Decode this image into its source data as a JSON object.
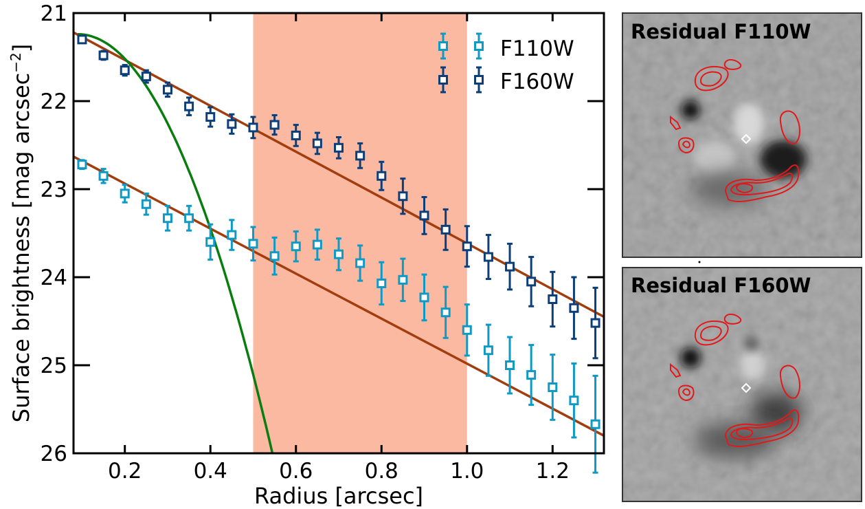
{
  "chart_data": {
    "type": "scatter",
    "xlabel": "Radius [arcsec]",
    "ylabel_main": "Surface brightness [mag arcsec",
    "ylabel_exp": "−2",
    "ylabel_close": "]",
    "xlim": [
      0.08,
      1.32
    ],
    "ylim": [
      26,
      21
    ],
    "x_ticks": [
      0.2,
      0.4,
      0.6,
      0.8,
      1.0,
      1.2
    ],
    "x_tick_labels": [
      "0.2",
      "0.4",
      "0.6",
      "0.8",
      "1.0",
      "1.2"
    ],
    "y_ticks": [
      21,
      22,
      23,
      24,
      25,
      26
    ],
    "y_tick_labels": [
      "21",
      "22",
      "23",
      "24",
      "25",
      "26"
    ],
    "shaded_region": {
      "x0": 0.5,
      "x1": 1.0,
      "color": "#fbb9a2"
    },
    "x": [
      0.1,
      0.15,
      0.2,
      0.25,
      0.3,
      0.35,
      0.4,
      0.45,
      0.5,
      0.55,
      0.6,
      0.65,
      0.7,
      0.75,
      0.8,
      0.85,
      0.9,
      0.95,
      1.0,
      1.05,
      1.1,
      1.15,
      1.2,
      1.25,
      1.3
    ],
    "series": [
      {
        "name": "F110W",
        "color": "#0f9ac6",
        "y": [
          22.72,
          22.85,
          23.05,
          23.17,
          23.33,
          23.33,
          23.6,
          23.52,
          23.62,
          23.76,
          23.65,
          23.63,
          23.74,
          23.84,
          24.07,
          24.03,
          24.23,
          24.4,
          24.6,
          24.83,
          25.0,
          25.11,
          25.25,
          25.4,
          25.67
        ],
        "err": [
          0.05,
          0.08,
          0.1,
          0.12,
          0.14,
          0.14,
          0.2,
          0.17,
          0.19,
          0.21,
          0.17,
          0.17,
          0.18,
          0.2,
          0.24,
          0.24,
          0.26,
          0.29,
          0.29,
          0.29,
          0.32,
          0.34,
          0.37,
          0.42,
          0.55
        ]
      },
      {
        "name": "F160W",
        "color": "#0c3f7a",
        "y": [
          21.3,
          21.48,
          21.65,
          21.72,
          21.87,
          22.06,
          22.18,
          22.26,
          22.3,
          22.27,
          22.39,
          22.48,
          22.53,
          22.62,
          22.85,
          23.08,
          23.3,
          23.46,
          23.65,
          23.77,
          23.88,
          24.05,
          24.25,
          24.35,
          24.52
        ],
        "err": [
          0.04,
          0.05,
          0.06,
          0.07,
          0.08,
          0.1,
          0.11,
          0.11,
          0.12,
          0.11,
          0.12,
          0.12,
          0.12,
          0.14,
          0.16,
          0.2,
          0.21,
          0.23,
          0.23,
          0.25,
          0.26,
          0.28,
          0.31,
          0.35,
          0.4
        ]
      }
    ],
    "model_lines": [
      {
        "name": "F160W disk fit",
        "color": "#a23d0e",
        "x": [
          0.08,
          1.32
        ],
        "y": [
          21.22,
          24.45
        ]
      },
      {
        "name": "F110W disk fit",
        "color": "#a23d0e",
        "x": [
          0.08,
          1.32
        ],
        "y": [
          22.63,
          25.8
        ]
      },
      {
        "name": "bulge/PSF profile",
        "color": "#0a7d10",
        "x0": 0.09,
        "y0": 21.24,
        "x_end": 0.545,
        "y_end": 26.0,
        "power": 2.0
      }
    ],
    "legend": {
      "position": "top-right",
      "entries": [
        "F110W",
        "F160W"
      ]
    }
  },
  "panels": [
    {
      "title": "Residual F110W"
    },
    {
      "title": "Residual F160W"
    }
  ],
  "colors": {
    "contour": "#e0191a",
    "marker_white": "#ffffff"
  }
}
